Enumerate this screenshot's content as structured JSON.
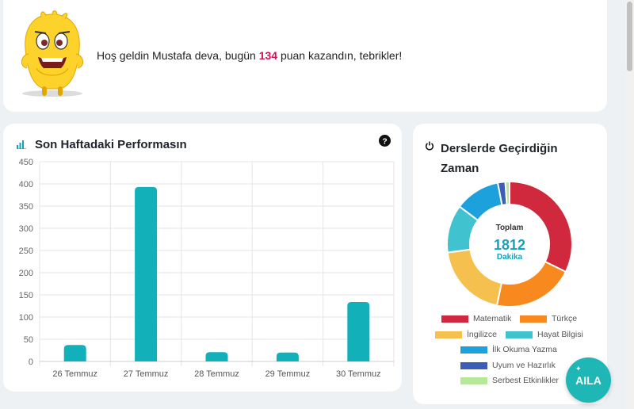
{
  "welcome": {
    "prefix": "Hoş geldin Mustafa deva, bugün",
    "points": "134",
    "suffix": "puan kazandın, tebrikler!"
  },
  "performance": {
    "title": "Son Haftadaki Performasın"
  },
  "time_spent": {
    "title": "Derslerde Geçirdiğin Zaman",
    "total_label": "Toplam",
    "total_value": "1812",
    "total_unit": "Dakika"
  },
  "aila_button": "AILA",
  "chart_data": [
    {
      "type": "bar",
      "categories": [
        "26 Temmuz",
        "27 Temmuz",
        "28 Temmuz",
        "29 Temmuz",
        "30 Temmuz"
      ],
      "values": [
        37,
        393,
        21,
        20,
        134
      ],
      "yticks": [
        0,
        50,
        100,
        150,
        200,
        250,
        300,
        350,
        400,
        450
      ],
      "ylim": [
        0,
        450
      ],
      "color": "#12b0b8",
      "grid": true
    },
    {
      "type": "pie",
      "labels": [
        "Matematik",
        "Türkçe",
        "İngilizce",
        "Hayat Bilgisi",
        "İlk Okuma Yazma",
        "Uyum ve Hazırlık",
        "Serbest Etkinlikler"
      ],
      "values": [
        585,
        380,
        355,
        225,
        212,
        35,
        20
      ],
      "colors": [
        "#d0293e",
        "#f7891e",
        "#f6c04e",
        "#41c3cf",
        "#1da1dd",
        "#3b5db8",
        "#b7e89a"
      ],
      "legend": "bottom"
    }
  ]
}
